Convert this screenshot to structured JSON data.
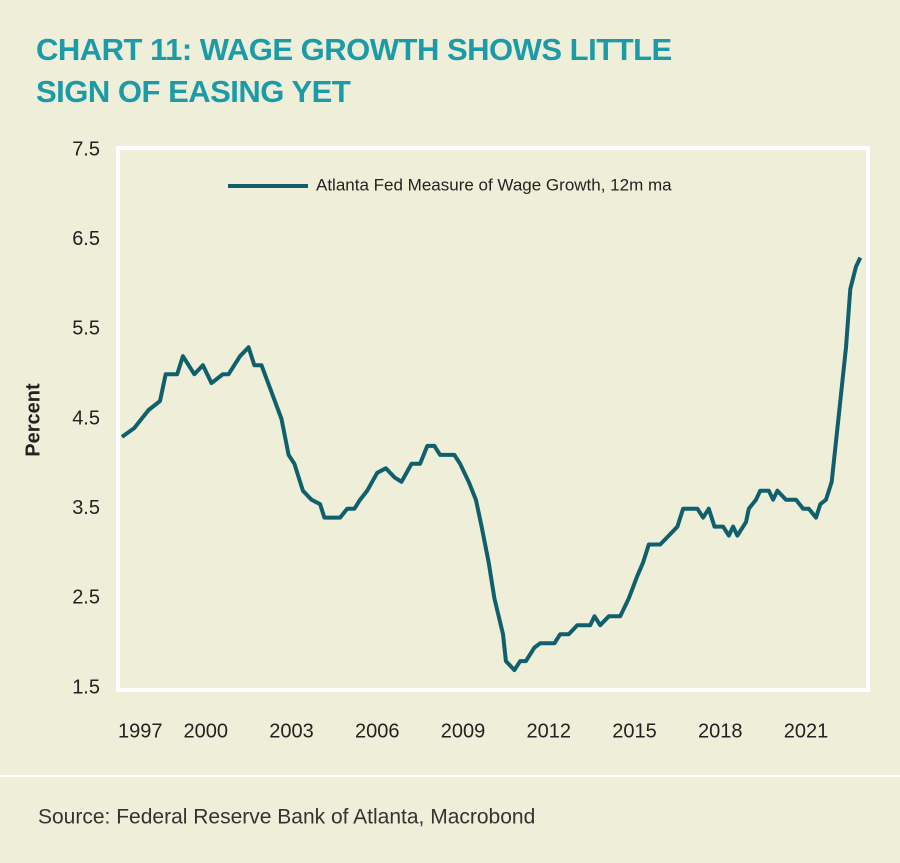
{
  "chart_data": {
    "type": "line",
    "title": [
      "CHART 11: WAGE GROWTH SHOWS LITTLE",
      "SIGN OF EASING YET"
    ],
    "y_label": "Percent",
    "source": "Source: Federal Reserve Bank of Atlanta, Macrobond",
    "x": [
      1997.07,
      1997.5,
      1998.0,
      1998.4,
      1998.6,
      1999.0,
      1999.2,
      1999.6,
      1999.9,
      2000.2,
      2000.6,
      2000.8,
      2001.2,
      2001.5,
      2001.7,
      2001.95,
      2002.3,
      2002.65,
      2002.9,
      2003.1,
      2003.4,
      2003.7,
      2004.0,
      2004.15,
      2004.7,
      2004.95,
      2005.2,
      2005.4,
      2005.65,
      2006.0,
      2006.3,
      2006.6,
      2006.85,
      2007.2,
      2007.5,
      2007.75,
      2008.0,
      2008.2,
      2008.7,
      2008.9,
      2009.2,
      2009.45,
      2009.65,
      2009.9,
      2010.1,
      2010.4,
      2010.5,
      2010.8,
      2011.0,
      2011.2,
      2011.5,
      2011.7,
      2012.2,
      2012.4,
      2012.7,
      2013.0,
      2013.45,
      2013.6,
      2013.8,
      2014.1,
      2014.5,
      2014.8,
      2015.1,
      2015.3,
      2015.5,
      2015.9,
      2016.2,
      2016.5,
      2016.7,
      2017.2,
      2017.4,
      2017.6,
      2017.8,
      2018.1,
      2018.3,
      2018.45,
      2018.6,
      2018.9,
      2019.0,
      2019.25,
      2019.4,
      2019.7,
      2019.85,
      2020.0,
      2020.3,
      2020.65,
      2020.9,
      2021.1,
      2021.35,
      2021.5,
      2021.7,
      2021.9,
      2022.05,
      2022.2,
      2022.4,
      2022.55,
      2022.75,
      2022.9
    ],
    "series": [
      {
        "name": "Atlanta Fed Measure of Wage Growth, 12m ma",
        "color": "#0f5f6d",
        "values": [
          4.3,
          4.4,
          4.6,
          4.7,
          5.0,
          5.0,
          5.2,
          5.0,
          5.1,
          4.9,
          5.0,
          5.0,
          5.2,
          5.3,
          5.1,
          5.1,
          4.8,
          4.5,
          4.1,
          4.0,
          3.7,
          3.6,
          3.55,
          3.4,
          3.4,
          3.5,
          3.5,
          3.6,
          3.7,
          3.9,
          3.95,
          3.85,
          3.8,
          4.0,
          4.0,
          4.2,
          4.2,
          4.1,
          4.1,
          4.0,
          3.8,
          3.6,
          3.3,
          2.9,
          2.5,
          2.1,
          1.8,
          1.7,
          1.8,
          1.8,
          1.95,
          2.0,
          2.0,
          2.1,
          2.1,
          2.2,
          2.2,
          2.3,
          2.2,
          2.3,
          2.3,
          2.5,
          2.75,
          2.9,
          3.1,
          3.1,
          3.2,
          3.3,
          3.5,
          3.5,
          3.4,
          3.5,
          3.3,
          3.3,
          3.2,
          3.3,
          3.2,
          3.35,
          3.5,
          3.6,
          3.7,
          3.7,
          3.6,
          3.7,
          3.6,
          3.6,
          3.5,
          3.5,
          3.4,
          3.55,
          3.6,
          3.8,
          4.25,
          4.7,
          5.3,
          5.95,
          6.2,
          6.3
        ]
      }
    ],
    "xlim": [
      1997,
      2023.1
    ],
    "xticks": [
      1997,
      2000,
      2003,
      2006,
      2009,
      2012,
      2015,
      2018,
      2021
    ],
    "ylim": [
      1.5,
      7.5
    ],
    "yticks": [
      1.5,
      2.5,
      3.5,
      4.5,
      5.5,
      6.5,
      7.5
    ],
    "legend": "top"
  }
}
